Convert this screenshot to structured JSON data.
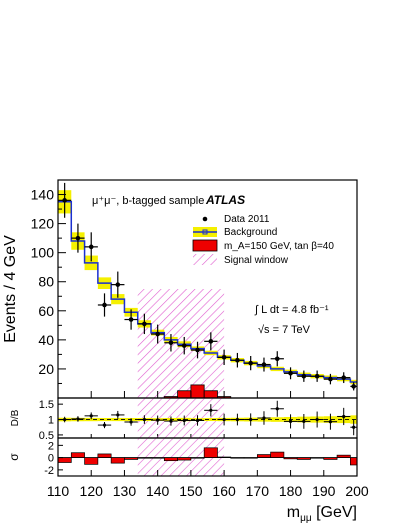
{
  "chart_data": [
    {
      "type": "histogram",
      "panel": "main",
      "ylabel": "Events / 4 GeV",
      "xlabel": "m_{μμ} [GeV]",
      "xlim": [
        110,
        200
      ],
      "ylim": [
        0,
        150
      ],
      "yticks": [
        20,
        40,
        60,
        80,
        100,
        120,
        140
      ],
      "xticks": [
        110,
        120,
        130,
        140,
        150,
        160,
        170,
        180,
        190,
        200
      ],
      "annotation_sample": "μ⁺μ⁻, b-tagged sample",
      "annotation_atlas": "ATLAS",
      "annotation_lumi": "∫ L dt = 4.8 fb⁻¹",
      "annotation_energy": "√s = 7 TeV",
      "legend": {
        "data": "Data 2011",
        "background": "Background",
        "signal": "m_A=150 GeV, tan β=40",
        "window": "Signal window"
      },
      "signal_window": [
        134,
        160
      ],
      "bin_edges": [
        110,
        114,
        118,
        122,
        126,
        130,
        134,
        138,
        142,
        146,
        150,
        154,
        158,
        162,
        166,
        170,
        174,
        178,
        182,
        186,
        190,
        194,
        198,
        200
      ],
      "background": [
        135,
        108,
        93,
        79,
        68,
        59,
        51,
        45,
        40,
        37,
        34,
        31,
        28,
        26,
        24,
        22,
        20,
        18,
        16,
        15,
        14,
        13,
        11
      ],
      "background_unc": [
        8,
        6,
        5,
        4,
        3.5,
        3,
        2.5,
        2,
        2,
        2,
        1.5,
        1.5,
        1.5,
        1.5,
        1.5,
        1.5,
        1.5,
        1.5,
        1.5,
        1.5,
        1.5,
        1.5,
        1.5
      ],
      "signal": [
        0,
        0,
        0,
        0,
        0,
        0,
        0,
        0,
        1,
        5,
        9,
        5,
        1,
        0,
        0,
        0,
        0,
        0,
        0,
        0,
        0,
        0,
        0
      ],
      "data_x": [
        112,
        116,
        120,
        124,
        128,
        132,
        136,
        140,
        144,
        148,
        152,
        156,
        160,
        164,
        168,
        172,
        176,
        180,
        184,
        188,
        192,
        196,
        199
      ],
      "data_y": [
        136,
        110,
        104,
        64,
        78,
        54,
        51,
        44,
        38,
        36,
        33,
        39,
        28,
        26,
        24,
        23,
        27,
        17,
        15,
        15,
        13,
        14,
        8
      ],
      "data_err": [
        12,
        10,
        10,
        8,
        9,
        7,
        7,
        6.5,
        6,
        6,
        5.7,
        6.2,
        5.3,
        5,
        4.9,
        4.8,
        5.2,
        4.1,
        3.9,
        3.9,
        3.6,
        3.7,
        2.8
      ]
    },
    {
      "type": "scatter",
      "panel": "ratio",
      "ylabel": "D/B",
      "ylim": [
        0.4,
        1.7
      ],
      "yticks": [
        0.5,
        1,
        1.5
      ],
      "ytick_labels": [
        "0.5",
        "1",
        "1.5"
      ],
      "values": [
        1.0,
        1.02,
        1.12,
        0.82,
        1.15,
        0.92,
        1.0,
        0.98,
        0.95,
        0.97,
        0.97,
        1.3,
        1.0,
        1.0,
        1.0,
        1.05,
        1.35,
        0.94,
        0.94,
        1.0,
        0.93,
        1.1,
        0.75
      ],
      "errors": [
        0.09,
        0.09,
        0.11,
        0.1,
        0.13,
        0.12,
        0.14,
        0.15,
        0.15,
        0.16,
        0.17,
        0.2,
        0.19,
        0.19,
        0.2,
        0.22,
        0.26,
        0.23,
        0.24,
        0.26,
        0.26,
        0.28,
        0.26
      ]
    },
    {
      "type": "bar",
      "panel": "significance",
      "ylabel": "σ",
      "ylim": [
        -3,
        3.2
      ],
      "yticks": [
        -2,
        0,
        2
      ],
      "ytick_labels": [
        "-2",
        "0",
        "2"
      ],
      "values": [
        -0.8,
        0.8,
        -1.1,
        0.6,
        -0.9,
        -0.3,
        -0.1,
        -0.1,
        -0.5,
        -0.4,
        -0.1,
        1.6,
        0.1,
        0.0,
        0.0,
        0.5,
        0.9,
        -0.2,
        -0.3,
        0.0,
        -0.3,
        0.4,
        -1.2
      ]
    }
  ]
}
